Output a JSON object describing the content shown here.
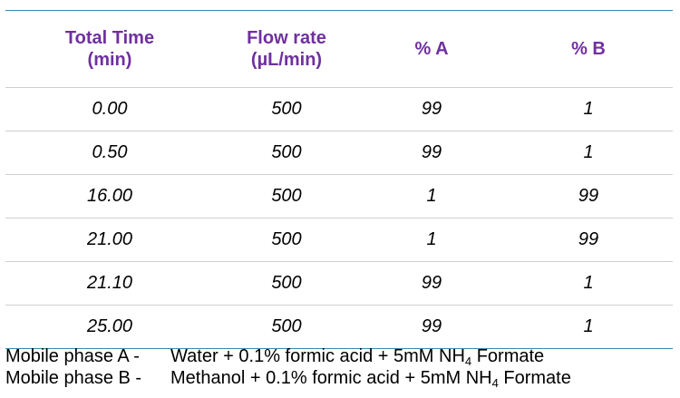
{
  "table": {
    "headers": [
      "Total Time\n(min)",
      "Flow rate\n(µL/min)",
      "% A",
      "% B"
    ],
    "rows": [
      [
        "0.00",
        "500",
        "99",
        "1"
      ],
      [
        "0.50",
        "500",
        "99",
        "1"
      ],
      [
        "16.00",
        "500",
        "1",
        "99"
      ],
      [
        "21.00",
        "500",
        "1",
        "99"
      ],
      [
        "21.10",
        "500",
        "99",
        "1"
      ],
      [
        "25.00",
        "500",
        "99",
        "1"
      ]
    ]
  },
  "notes": {
    "a_label": "Mobile phase A -",
    "a_text_before": "Water + 0.1% formic acid + 5mM NH",
    "a_sub": "4",
    "a_text_after": " Formate",
    "b_label": "Mobile phase B -",
    "b_text_before": "Methanol + 0.1% formic acid + 5mM NH",
    "b_sub": "4",
    "b_text_after": " Formate"
  },
  "colors": {
    "header": "#7030a0",
    "rule": "#2e8fa6",
    "row_divider": "#cfcfcf"
  }
}
